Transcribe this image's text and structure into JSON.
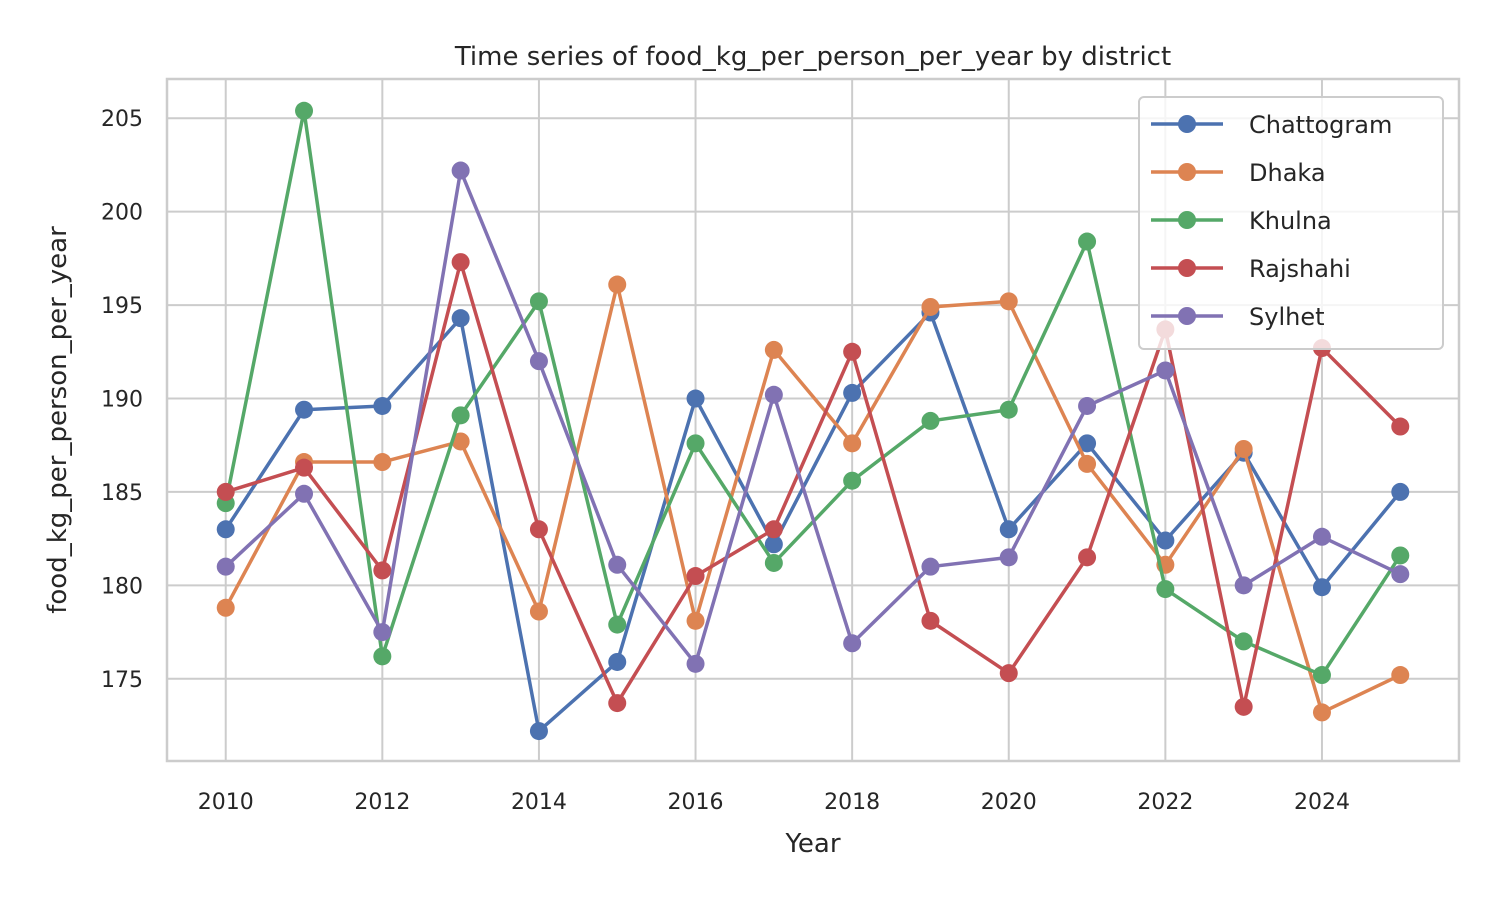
{
  "chart_data": {
    "type": "line",
    "title": "Time series of food_kg_per_person_per_year by district",
    "xlabel": "Year",
    "ylabel": "food_kg_per_person_per_year",
    "x": [
      2010,
      2011,
      2012,
      2013,
      2014,
      2015,
      2016,
      2017,
      2018,
      2019,
      2020,
      2021,
      2022,
      2023,
      2024,
      2025
    ],
    "xlim": [
      2009.25,
      2025.75
    ],
    "ylim": [
      170.6,
      207.1
    ],
    "xticks": [
      2010,
      2012,
      2014,
      2016,
      2018,
      2020,
      2022,
      2024
    ],
    "yticks": [
      175,
      180,
      185,
      190,
      195,
      200,
      205
    ],
    "grid": true,
    "legend_position": "top-right",
    "series": [
      {
        "name": "Chattogram",
        "color": "#4c72b0",
        "values": [
          183.0,
          189.4,
          189.6,
          194.3,
          172.2,
          175.9,
          190.0,
          182.2,
          190.3,
          194.6,
          183.0,
          187.6,
          182.4,
          187.1,
          179.9,
          185.0
        ]
      },
      {
        "name": "Dhaka",
        "color": "#dd8452",
        "values": [
          178.8,
          186.6,
          186.6,
          187.7,
          178.6,
          196.1,
          178.1,
          192.6,
          187.6,
          194.9,
          195.2,
          186.5,
          181.1,
          187.3,
          173.2,
          175.2
        ]
      },
      {
        "name": "Khulna",
        "color": "#55a868",
        "values": [
          184.4,
          205.4,
          176.2,
          189.1,
          195.2,
          177.9,
          187.6,
          181.2,
          185.6,
          188.8,
          189.4,
          198.4,
          179.8,
          177.0,
          175.2,
          181.6
        ]
      },
      {
        "name": "Rajshahi",
        "color": "#c44e52",
        "values": [
          185.0,
          186.3,
          180.8,
          197.3,
          183.0,
          173.7,
          180.5,
          183.0,
          192.5,
          178.1,
          175.3,
          181.5,
          193.7,
          173.5,
          192.7,
          188.5
        ]
      },
      {
        "name": "Sylhet",
        "color": "#8172b3",
        "values": [
          181.0,
          184.9,
          177.5,
          202.2,
          192.0,
          181.1,
          175.8,
          190.2,
          176.9,
          181.0,
          181.5,
          189.6,
          191.5,
          180.0,
          182.6,
          180.6
        ]
      }
    ]
  }
}
